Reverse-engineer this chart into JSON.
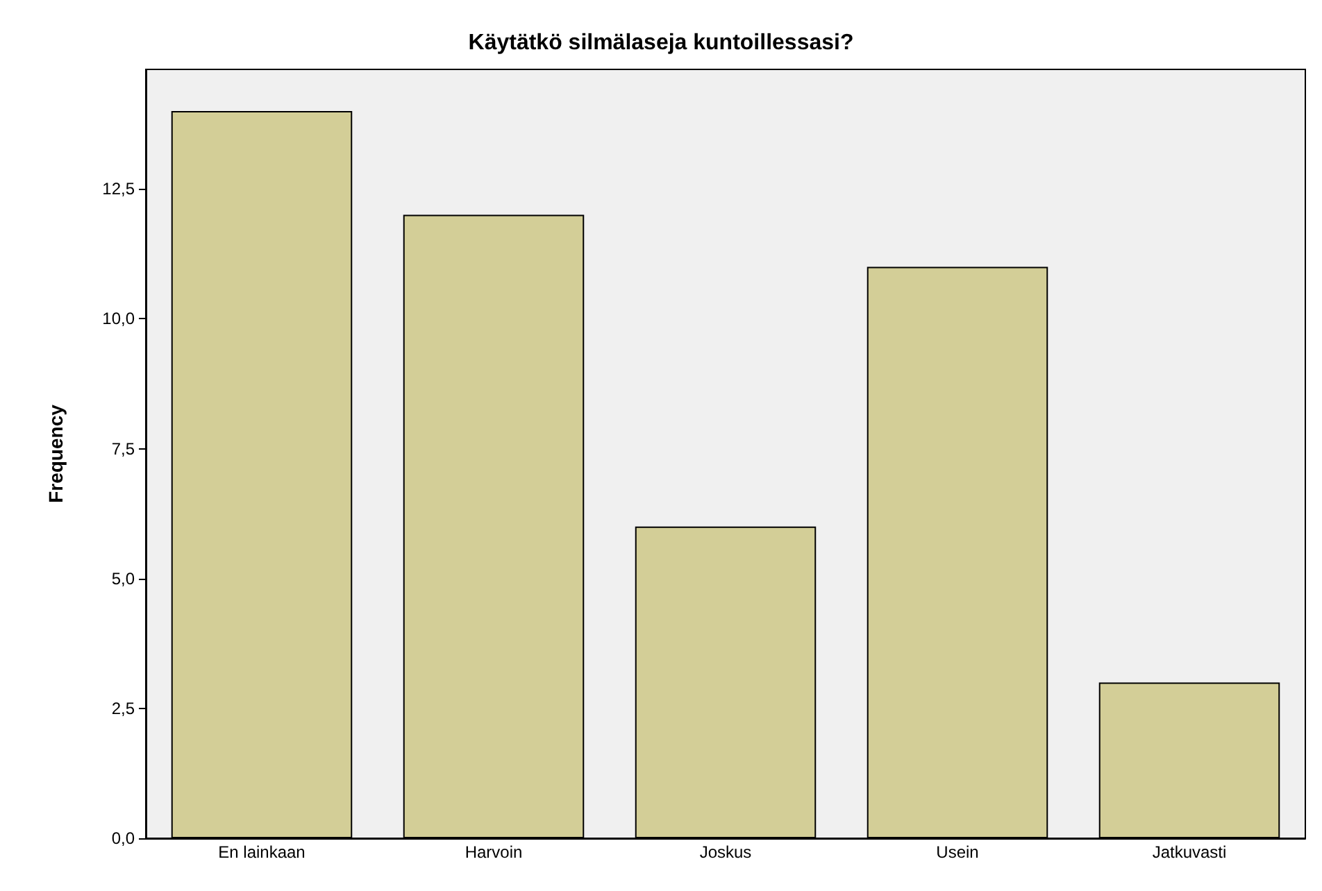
{
  "chart_data": {
    "type": "bar",
    "title": "Käytätkö silmälaseja kuntoillessasi?",
    "ylabel": "Frequency",
    "categories": [
      "En lainkaan",
      "Harvoin",
      "Joskus",
      "Usein",
      "Jatkuvasti"
    ],
    "values": [
      14,
      12,
      6,
      11,
      3
    ],
    "color": "#d3ce97",
    "ylim": [
      0,
      14.8
    ],
    "yticks": [
      {
        "value": 0,
        "label": "0,0"
      },
      {
        "value": 2.5,
        "label": "2,5"
      },
      {
        "value": 5,
        "label": "5,0"
      },
      {
        "value": 7.5,
        "label": "7,5"
      },
      {
        "value": 10,
        "label": "10,0"
      },
      {
        "value": 12.5,
        "label": "12,5"
      }
    ],
    "grid": false
  }
}
